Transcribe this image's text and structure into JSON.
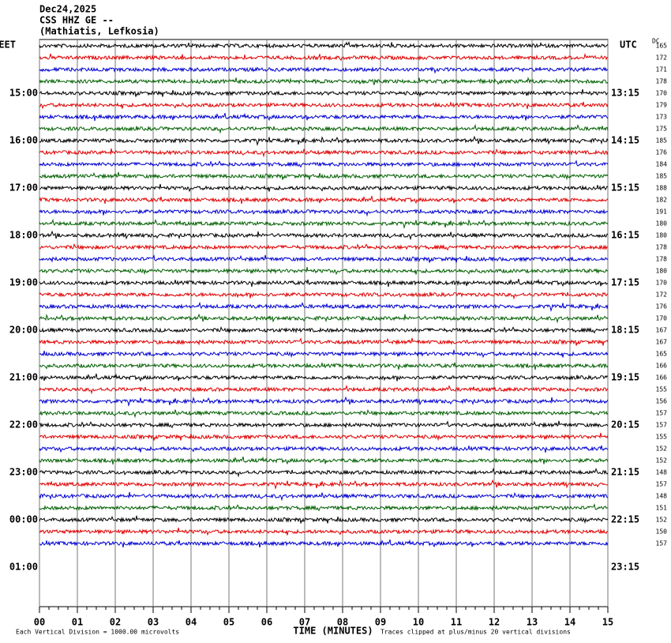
{
  "chart_data": {
    "type": "helicorder",
    "title_lines": [
      "Dec24,2025",
      "CSS HHZ GE --",
      "(Mathiatis, Lefkosia)"
    ],
    "left_header": "EET",
    "right_header": "UTC",
    "dc_header": "DC",
    "left_labels": [
      "15:00",
      "16:00",
      "17:00",
      "18:00",
      "19:00",
      "20:00",
      "21:00",
      "22:00",
      "23:00",
      "00:00",
      "01:00"
    ],
    "right_labels": [
      "13:15",
      "14:15",
      "15:15",
      "16:15",
      "17:15",
      "18:15",
      "19:15",
      "20:15",
      "21:15",
      "22:15",
      "23:15"
    ],
    "dc_offsets": [
      165,
      172,
      171,
      178,
      170,
      179,
      173,
      175,
      185,
      176,
      184,
      185,
      188,
      182,
      191,
      180,
      180,
      178,
      178,
      180,
      170,
      172,
      176,
      170,
      167,
      167,
      165,
      166,
      166,
      155,
      156,
      157,
      157,
      155,
      152,
      152,
      148,
      157,
      148,
      151,
      152,
      150,
      157
    ],
    "trace_colors": [
      "#000000",
      "#e00000",
      "#0000d0",
      "#006000"
    ],
    "xlim": [
      0,
      15
    ],
    "xticks": [
      {
        "value": 0,
        "label": "00"
      },
      {
        "value": 1,
        "label": "01"
      },
      {
        "value": 2,
        "label": "02"
      },
      {
        "value": 3,
        "label": "03"
      },
      {
        "value": 4,
        "label": "04"
      },
      {
        "value": 5,
        "label": "05"
      },
      {
        "value": 6,
        "label": "06"
      },
      {
        "value": 7,
        "label": "07"
      },
      {
        "value": 8,
        "label": "08"
      },
      {
        "value": 9,
        "label": "09"
      },
      10,
      11,
      12,
      13,
      14,
      15
    ],
    "x_label": "TIME (MINUTES)",
    "footnote_left": "Each Vertical Division = 1000.00 microvolts",
    "footnote_right": "Traces clipped at plus/minus 20 vertical divisions",
    "grid": true
  }
}
